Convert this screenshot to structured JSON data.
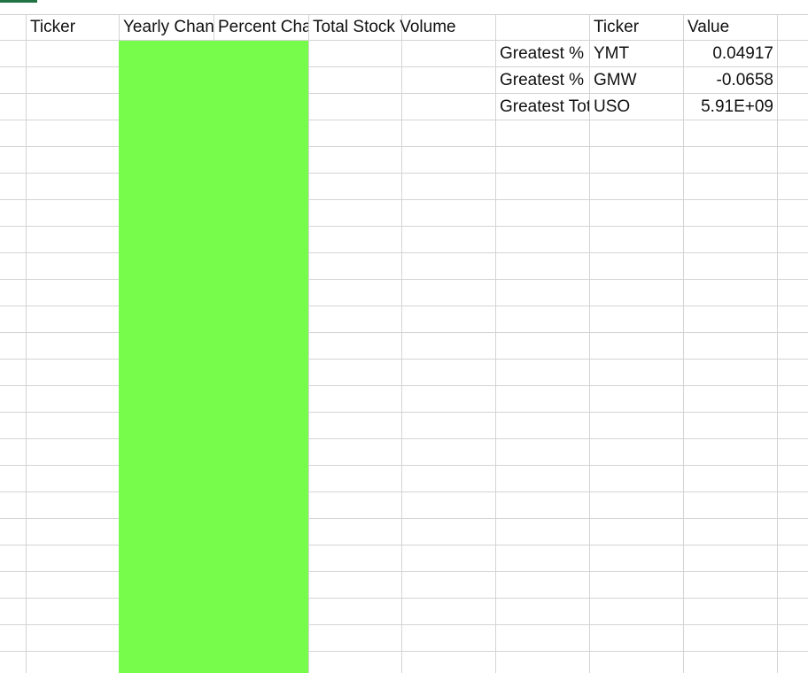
{
  "colors": {
    "fill": "#77fc4c",
    "gridline": "#d4d4d4",
    "accent": "#217346"
  },
  "table1": {
    "headers": [
      "Ticker",
      "Yearly Change",
      "Percent Change",
      "Total Stock Volume"
    ]
  },
  "summary": {
    "headers": [
      "",
      "Ticker",
      "Value"
    ],
    "rows": [
      {
        "label": "Greatest % Increase",
        "ticker": "YMT",
        "value": "0.04917"
      },
      {
        "label": "Greatest % Decrease",
        "ticker": "GMW",
        "value": "-0.0658"
      },
      {
        "label": "Greatest Total Volume",
        "ticker": "USO",
        "value": "5.91E+09"
      }
    ]
  }
}
